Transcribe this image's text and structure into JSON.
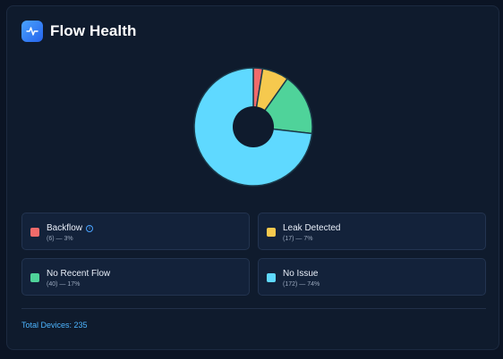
{
  "header": {
    "title": "Flow Health",
    "icon": "pulse-icon"
  },
  "colors": {
    "backflow": "#f06a6a",
    "leak": "#f6c94e",
    "no_recent_flow": "#4fd39a",
    "no_issue": "#5fd9ff",
    "accent": "#4db5ff"
  },
  "chart_data": {
    "type": "pie",
    "donut": true,
    "categories": [
      "Backflow",
      "Leak Detected",
      "No Recent Flow",
      "No Issue"
    ],
    "values": [
      6,
      17,
      40,
      172
    ]
  },
  "legend": [
    {
      "label": "Backflow",
      "detail": "(6) — 3%",
      "color": "#f06a6a",
      "info": "info-icon"
    },
    {
      "label": "Leak Detected",
      "detail": "(17) — 7%",
      "color": "#f6c94e"
    },
    {
      "label": "No Recent Flow",
      "detail": "(40) — 17%",
      "color": "#4fd39a"
    },
    {
      "label": "No Issue",
      "detail": "(172) — 74%",
      "color": "#5fd9ff"
    }
  ],
  "footer": {
    "total": "Total Devices: 235"
  }
}
